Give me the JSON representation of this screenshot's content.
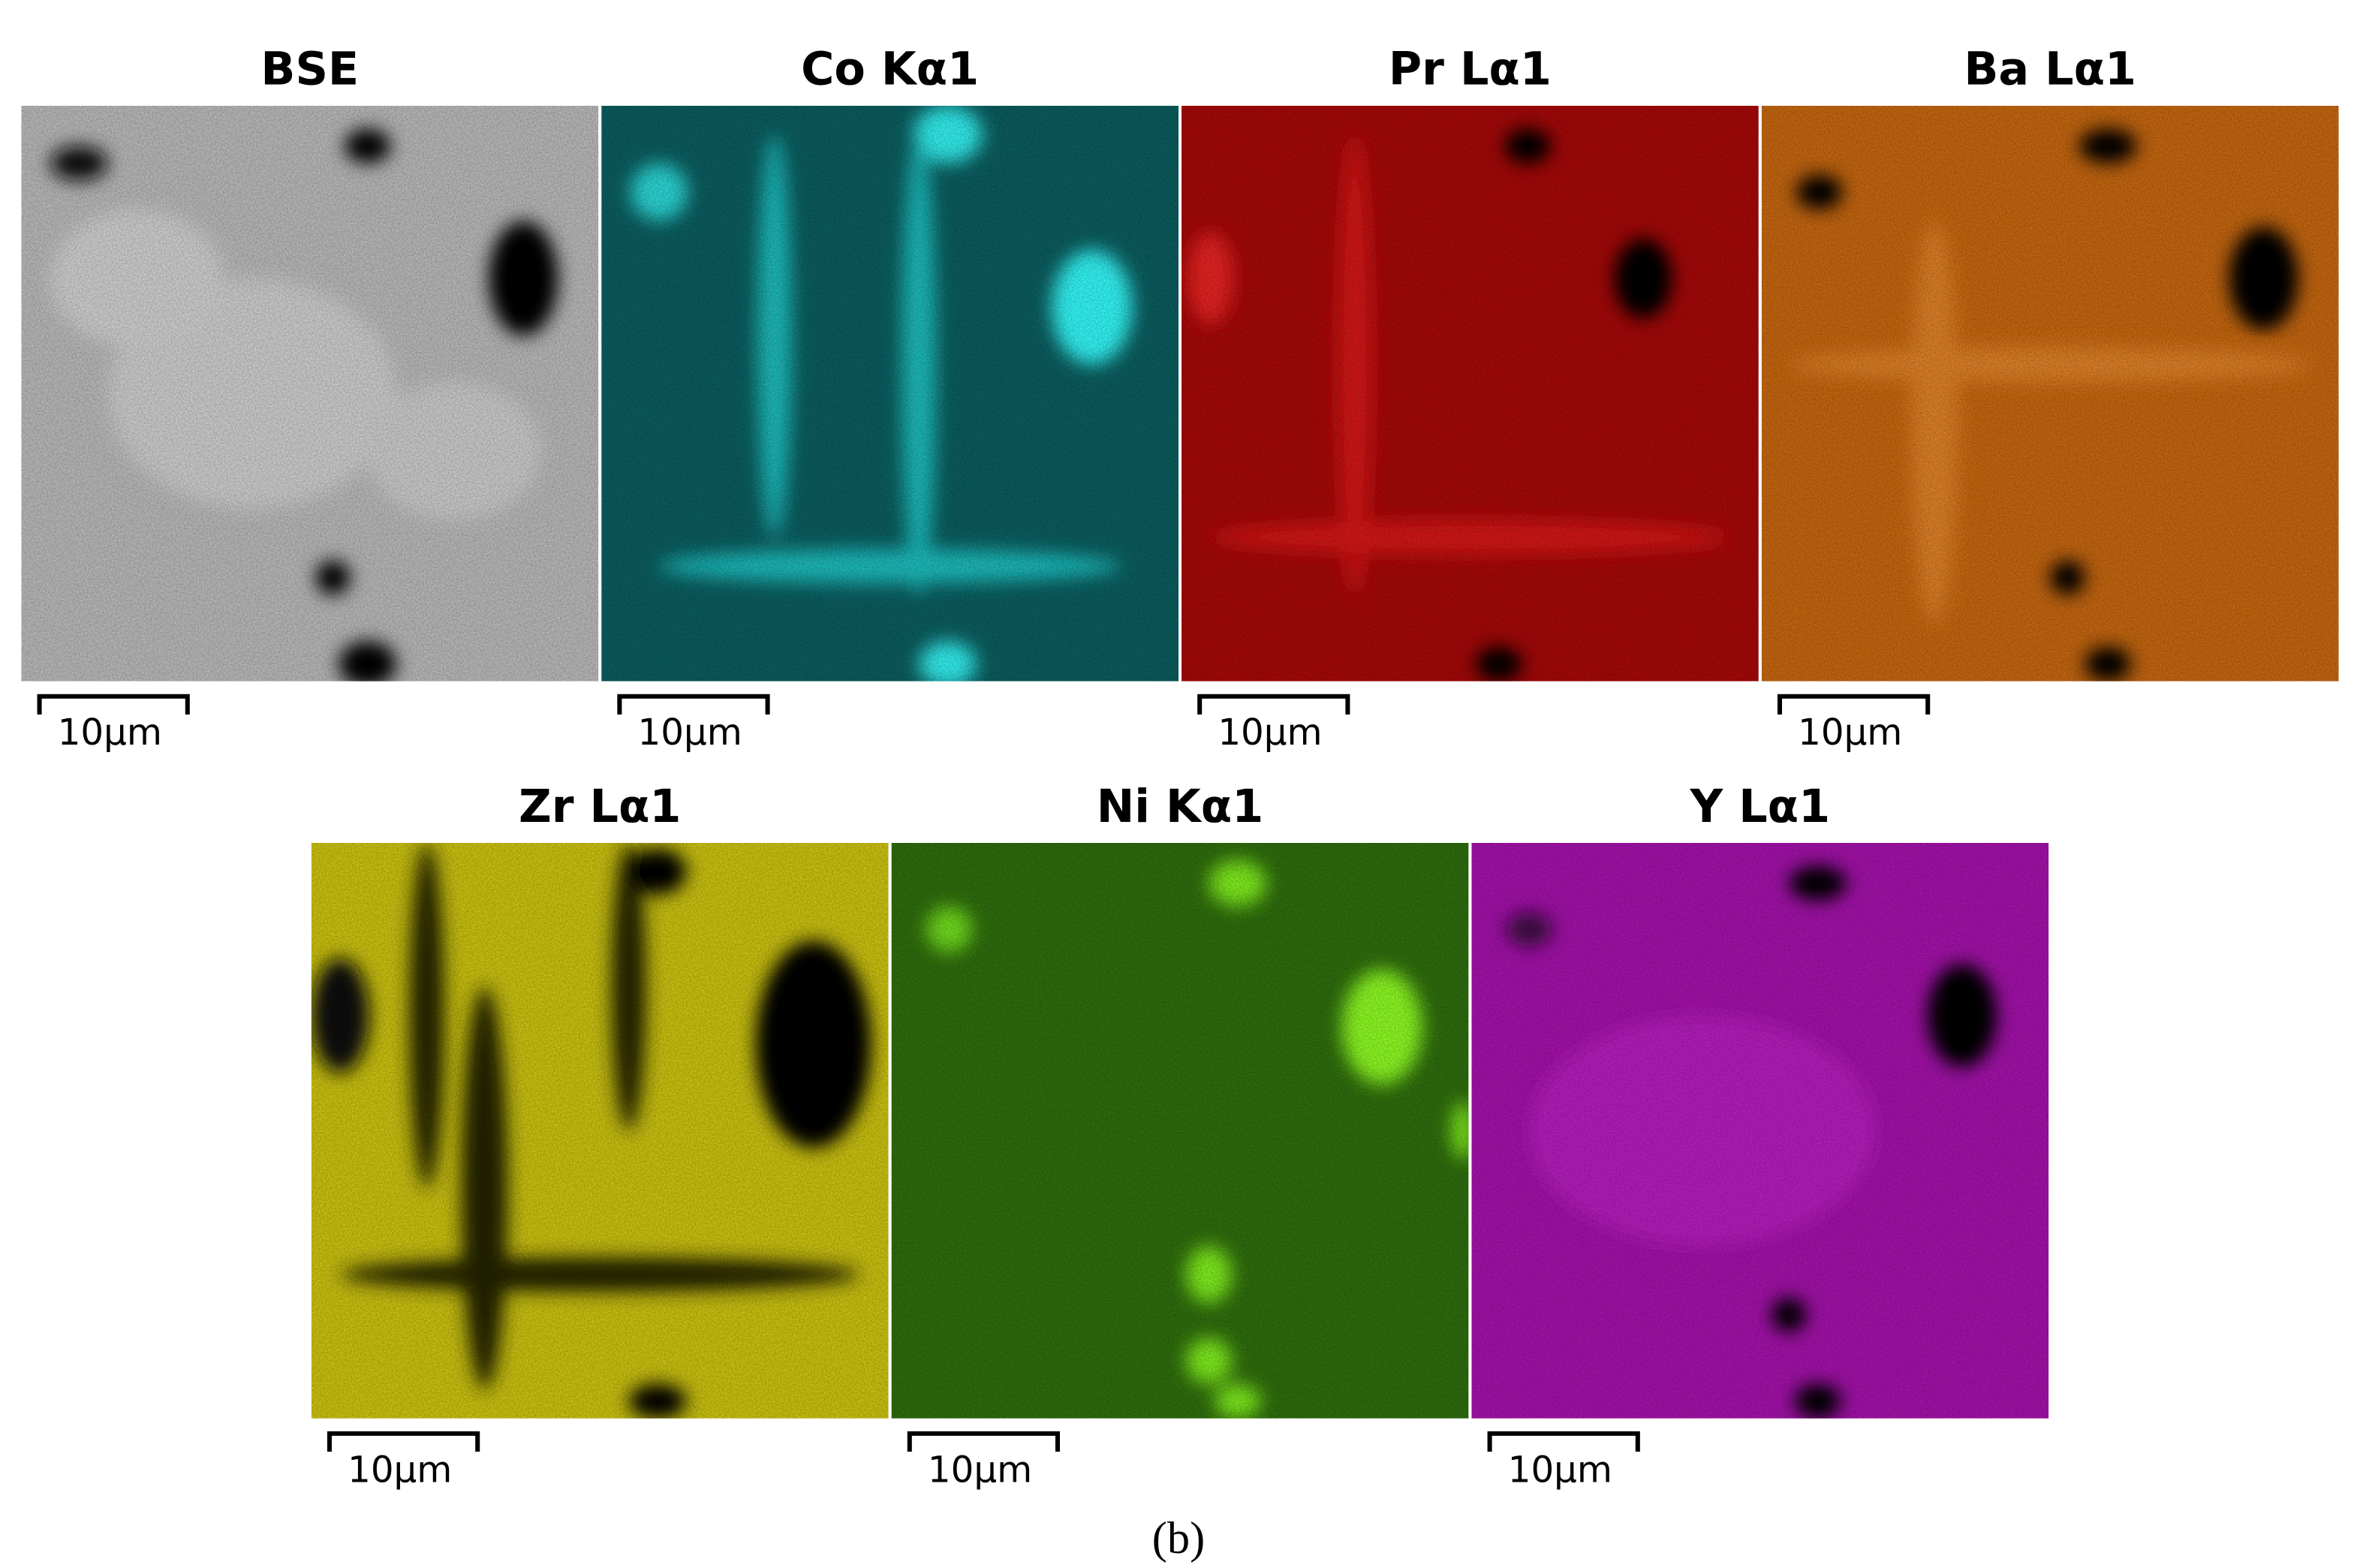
{
  "panels": [
    {
      "title": "BSE",
      "scale_label": "10µm"
    },
    {
      "title": "Co Kα1",
      "scale_label": "10µm"
    },
    {
      "title": "Pr Lα1",
      "scale_label": "10µm"
    },
    {
      "title": "Ba Lα1",
      "scale_label": "10µm"
    },
    {
      "title": "Zr Lα1",
      "scale_label": "10µm"
    },
    {
      "title": "Ni Kα1",
      "scale_label": "10µm"
    },
    {
      "title": "Y Lα1",
      "scale_label": "10µm"
    }
  ],
  "caption": "(b)"
}
